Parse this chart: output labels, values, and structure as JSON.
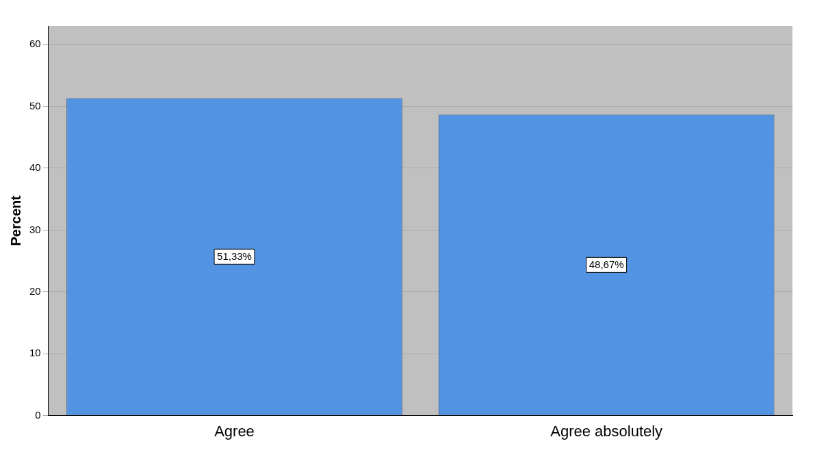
{
  "chart_data": {
    "type": "bar",
    "ylabel": "Percent",
    "categories": [
      "Agree",
      "Agree absolutely"
    ],
    "values": [
      51.33,
      48.67
    ],
    "value_labels": [
      "51,33%",
      "48,67%"
    ],
    "color": "#5294e2",
    "ylim": [
      0,
      63
    ],
    "yticks": [
      0,
      10,
      20,
      30,
      40,
      50,
      60
    ],
    "grid": "y",
    "legend": false
  }
}
